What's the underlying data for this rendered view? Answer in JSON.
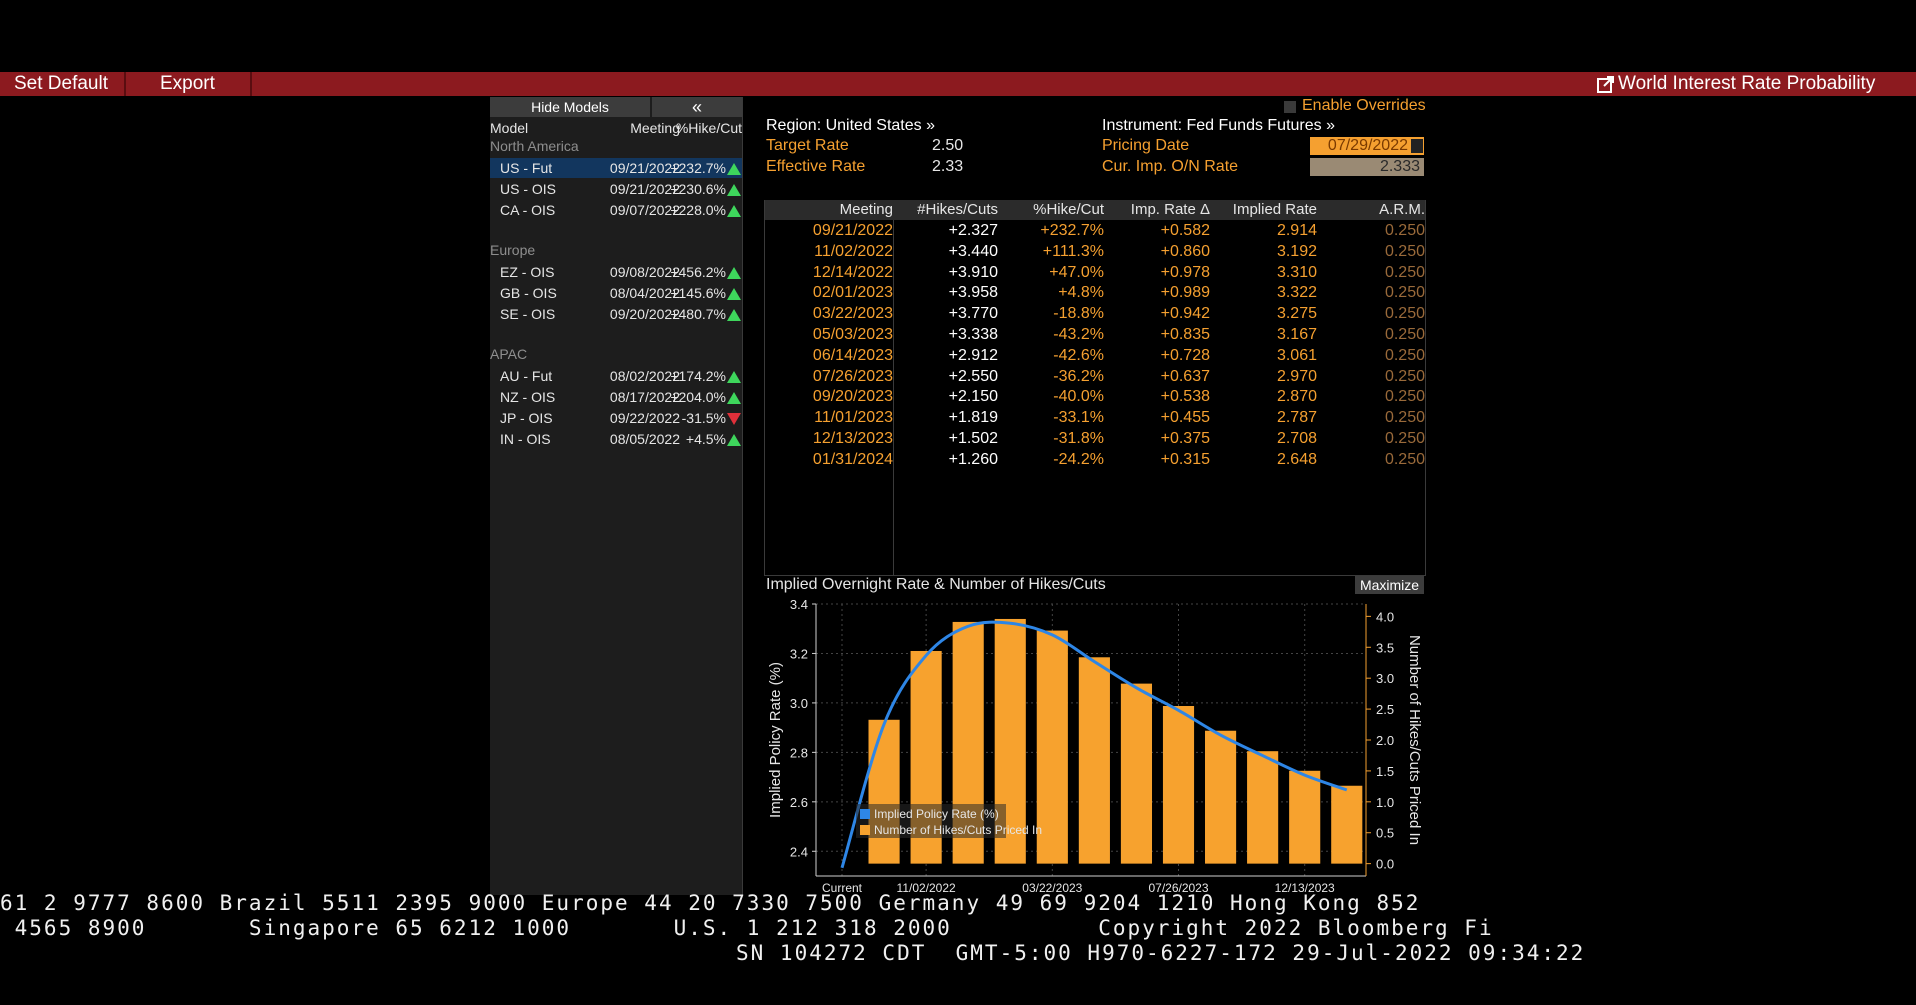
{
  "toolbar": {
    "set_default": "Set Default",
    "export": "Export",
    "title": "World Interest Rate Probability"
  },
  "models": {
    "hide_models": "Hide Models",
    "collapse": "«",
    "col_model": "Model",
    "col_meeting": "Meeting",
    "col_hike": "%Hike/Cut",
    "groups": [
      {
        "name": "North America",
        "rows": [
          {
            "model": "US - Fut",
            "meeting": "09/21/2022",
            "hike": "+232.7%",
            "dir": "up",
            "selected": true
          },
          {
            "model": "US - OIS",
            "meeting": "09/21/2022",
            "hike": "+230.6%",
            "dir": "up"
          },
          {
            "model": "CA - OIS",
            "meeting": "09/07/2022",
            "hike": "+228.0%",
            "dir": "up"
          }
        ]
      },
      {
        "name": "Europe",
        "rows": [
          {
            "model": "EZ - OIS",
            "meeting": "09/08/2022",
            "hike": "+456.2%",
            "dir": "up"
          },
          {
            "model": "GB - OIS",
            "meeting": "08/04/2022",
            "hike": "+145.6%",
            "dir": "up"
          },
          {
            "model": "SE - OIS",
            "meeting": "09/20/2022",
            "hike": "+480.7%",
            "dir": "up"
          }
        ]
      },
      {
        "name": "APAC",
        "rows": [
          {
            "model": "AU - Fut",
            "meeting": "08/02/2022",
            "hike": "+174.2%",
            "dir": "up"
          },
          {
            "model": "NZ - OIS",
            "meeting": "08/17/2022",
            "hike": "+204.0%",
            "dir": "up"
          },
          {
            "model": "JP - OIS",
            "meeting": "09/22/2022",
            "hike": "-31.5%",
            "dir": "down"
          },
          {
            "model": "IN - OIS",
            "meeting": "08/05/2022",
            "hike": "+4.5%",
            "dir": "up"
          }
        ]
      }
    ]
  },
  "info": {
    "region": "Region: United States »",
    "instrument": "Instrument: Fed Funds Futures »",
    "enable_overrides": "Enable Overrides",
    "target_rate_label": "Target Rate",
    "target_rate": "2.50",
    "effective_rate_label": "Effective Rate",
    "effective_rate": "2.33",
    "pricing_date_label": "Pricing Date",
    "pricing_date": "07/29/2022",
    "cur_imp_label": "Cur. Imp. O/N Rate",
    "cur_imp": "2.333"
  },
  "table": {
    "headers": [
      "Meeting",
      "#Hikes/Cuts",
      "%Hike/Cut",
      "Imp. Rate Δ",
      "Implied Rate",
      "A.R.M."
    ],
    "rows": [
      [
        "09/21/2022",
        "+2.327",
        "+232.7%",
        "+0.582",
        "2.914",
        "0.250"
      ],
      [
        "11/02/2022",
        "+3.440",
        "+111.3%",
        "+0.860",
        "3.192",
        "0.250"
      ],
      [
        "12/14/2022",
        "+3.910",
        "+47.0%",
        "+0.978",
        "3.310",
        "0.250"
      ],
      [
        "02/01/2023",
        "+3.958",
        "+4.8%",
        "+0.989",
        "3.322",
        "0.250"
      ],
      [
        "03/22/2023",
        "+3.770",
        "-18.8%",
        "+0.942",
        "3.275",
        "0.250"
      ],
      [
        "05/03/2023",
        "+3.338",
        "-43.2%",
        "+0.835",
        "3.167",
        "0.250"
      ],
      [
        "06/14/2023",
        "+2.912",
        "-42.6%",
        "+0.728",
        "3.061",
        "0.250"
      ],
      [
        "07/26/2023",
        "+2.550",
        "-36.2%",
        "+0.637",
        "2.970",
        "0.250"
      ],
      [
        "09/20/2023",
        "+2.150",
        "-40.0%",
        "+0.538",
        "2.870",
        "0.250"
      ],
      [
        "11/01/2023",
        "+1.819",
        "-33.1%",
        "+0.455",
        "2.787",
        "0.250"
      ],
      [
        "12/13/2023",
        "+1.502",
        "-31.8%",
        "+0.375",
        "2.708",
        "0.250"
      ],
      [
        "01/31/2024",
        "+1.260",
        "-24.2%",
        "+0.315",
        "2.648",
        "0.250"
      ]
    ]
  },
  "chart": {
    "title": "Implied Overnight Rate & Number of Hikes/Cuts",
    "maximize": "Maximize"
  },
  "chart_data": {
    "type": "bar",
    "title": "Implied Overnight Rate & Number of Hikes/Cuts",
    "categories": [
      "Current",
      "09/21/2022",
      "11/02/2022",
      "12/14/2022",
      "02/01/2023",
      "03/22/2023",
      "05/03/2023",
      "06/14/2023",
      "07/26/2023",
      "09/20/2023",
      "11/01/2023",
      "12/13/2023",
      "01/31/2024"
    ],
    "x_tick_labels": [
      "Current",
      "11/02/2022",
      "03/22/2023",
      "07/26/2023",
      "12/13/2023"
    ],
    "series": [
      {
        "name": "Implied Policy Rate (%)",
        "type": "line",
        "axis": "left",
        "color": "#2e86e6",
        "values": [
          2.333,
          2.914,
          3.192,
          3.31,
          3.322,
          3.275,
          3.167,
          3.061,
          2.97,
          2.87,
          2.787,
          2.708,
          2.648
        ]
      },
      {
        "name": "Number of Hikes/Cuts Priced In",
        "type": "bar",
        "axis": "right",
        "color": "#f7a22e",
        "values": [
          null,
          2.327,
          3.44,
          3.91,
          3.958,
          3.77,
          3.338,
          2.912,
          2.55,
          2.15,
          1.819,
          1.502,
          1.26
        ]
      }
    ],
    "ylabel": "Implied Policy Rate (%)",
    "y2label": "Number of Hikes/Cuts Priced In",
    "ylim": [
      2.3,
      3.4
    ],
    "yticks": [
      "2.4",
      "2.6",
      "2.8",
      "3.0",
      "3.2",
      "3.4"
    ],
    "y2lim": [
      -0.2,
      4.2
    ],
    "y2ticks": [
      "0.0",
      "0.5",
      "1.0",
      "1.5",
      "2.0",
      "2.5",
      "3.0",
      "3.5",
      "4.0"
    ],
    "grid": true,
    "legend": "bottom-left"
  },
  "ticker": {
    "line1": "61 2 9777 8600 Brazil 5511 2395 9000 Europe 44 20 7330 7500 Germany 49 69 9204 1210 Hong Kong 852",
    "line2": " 4565 8900       Singapore 65 6212 1000       U.S. 1 212 318 2000          Copyright 2022 Bloomberg Fi",
    "line3": "SN 104272 CDT  GMT-5:00 H970-6227-172 29-Jul-2022 09:34:22"
  },
  "colors": {
    "accent_bar": "#8c1a1f",
    "orange": "#f5a030",
    "line_blue": "#2e86e6",
    "bar_orange": "#f7a22e"
  }
}
